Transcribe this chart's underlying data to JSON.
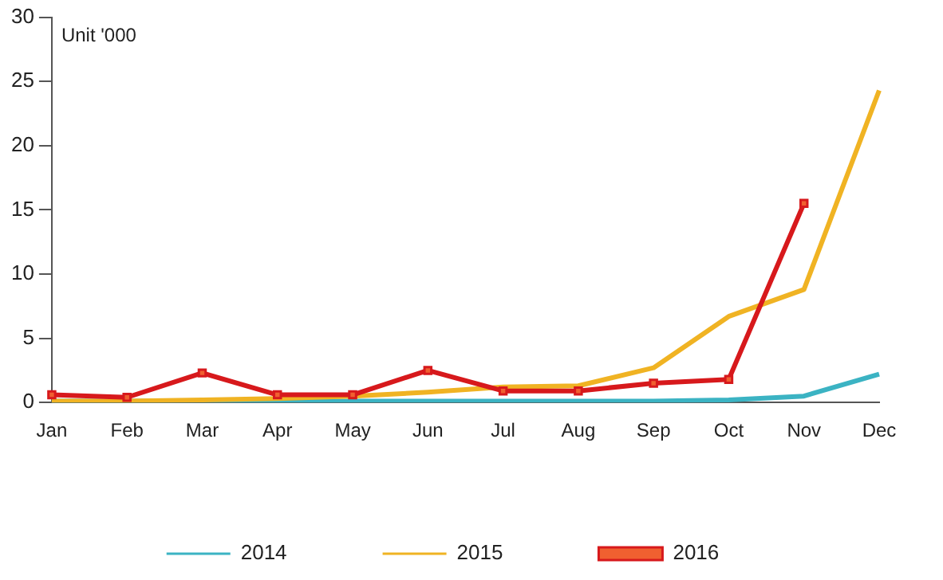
{
  "chart_data": {
    "type": "line",
    "categories": [
      "Jan",
      "Feb",
      "Mar",
      "Apr",
      "May",
      "Jun",
      "Jul",
      "Aug",
      "Sep",
      "Oct",
      "Nov",
      "Dec"
    ],
    "series": [
      {
        "name": "2014",
        "color": "#3bb3c3",
        "marker": "none",
        "values": [
          0.1,
          0.1,
          0.1,
          0.1,
          0.1,
          0.1,
          0.1,
          0.1,
          0.1,
          0.2,
          0.5,
          2.2
        ]
      },
      {
        "name": "2015",
        "color": "#f0b323",
        "marker": "none",
        "values": [
          0.1,
          0.1,
          0.2,
          0.3,
          0.5,
          0.8,
          1.2,
          1.3,
          2.7,
          6.7,
          8.8,
          24.3
        ]
      },
      {
        "name": "2016",
        "color": "#d7191c",
        "marker": "square",
        "values": [
          0.6,
          0.4,
          2.3,
          0.6,
          0.6,
          2.5,
          0.9,
          0.9,
          1.5,
          1.8,
          15.5,
          null
        ]
      }
    ],
    "ylim": [
      0,
      30
    ],
    "yticks": [
      0,
      5,
      10,
      15,
      20,
      25,
      30
    ],
    "grid": false,
    "legend": "bottom",
    "annotations": [
      "Unit '000"
    ]
  }
}
